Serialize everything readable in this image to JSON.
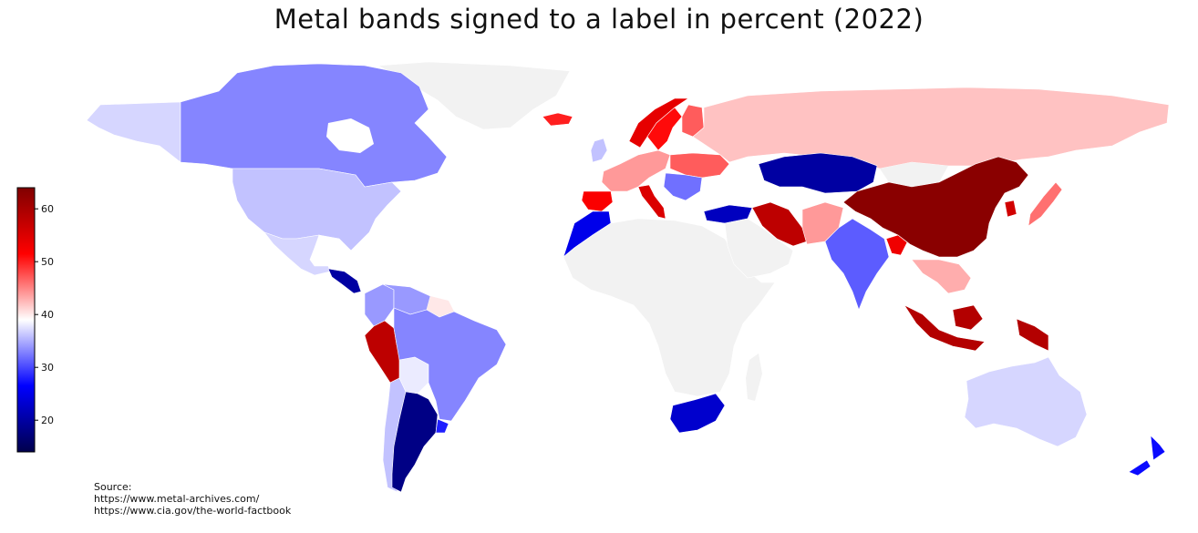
{
  "title": "Metal bands signed to a label in percent (2022)",
  "source": {
    "label": "Source:",
    "lines": [
      "https://www.metal-archives.com/",
      "https://www.cia.gov/the-world-factbook"
    ]
  },
  "colorbar": {
    "colormap": "seismic",
    "range": [
      14,
      64
    ],
    "ticks": [
      "20",
      "30",
      "40",
      "50",
      "60"
    ],
    "tick_values": [
      20,
      30,
      40,
      50,
      60
    ],
    "position": "left",
    "colors": [
      "#00004c",
      "#0000ff",
      "#ffffff",
      "#ff0000",
      "#800000"
    ]
  },
  "no_data_color": "#f2f2f2",
  "regions": [
    {
      "id": "greenland",
      "value": null
    },
    {
      "id": "alaska",
      "value": 37
    },
    {
      "id": "canada",
      "value": 33
    },
    {
      "id": "usa",
      "value": 36
    },
    {
      "id": "mexico",
      "value": 37
    },
    {
      "id": "central-america",
      "value": 20
    },
    {
      "id": "colombia",
      "value": 34
    },
    {
      "id": "venezuela",
      "value": 34
    },
    {
      "id": "peru",
      "value": 58
    },
    {
      "id": "brazil",
      "value": 33
    },
    {
      "id": "bolivia",
      "value": 38
    },
    {
      "id": "chile",
      "value": 36
    },
    {
      "id": "argentina",
      "value": 18
    },
    {
      "id": "uruguay",
      "value": 28
    },
    {
      "id": "iceland",
      "value": 50
    },
    {
      "id": "uk",
      "value": 36
    },
    {
      "id": "norway",
      "value": 54
    },
    {
      "id": "sweden",
      "value": 51
    },
    {
      "id": "finland",
      "value": 47
    },
    {
      "id": "russia",
      "value": 42
    },
    {
      "id": "western-europe",
      "value": 44
    },
    {
      "id": "iberia",
      "value": 52
    },
    {
      "id": "italy",
      "value": 55
    },
    {
      "id": "ukraine",
      "value": 47
    },
    {
      "id": "balkans",
      "value": 32
    },
    {
      "id": "turkey",
      "value": 22
    },
    {
      "id": "kazakhstan",
      "value": 20
    },
    {
      "id": "iran",
      "value": 58
    },
    {
      "id": "afghanistan",
      "value": 44
    },
    {
      "id": "india",
      "value": 31
    },
    {
      "id": "bangladesh",
      "value": 53
    },
    {
      "id": "china",
      "value": 63
    },
    {
      "id": "korea",
      "value": 56
    },
    {
      "id": "japan",
      "value": 46
    },
    {
      "id": "southeast-asia",
      "value": 43
    },
    {
      "id": "indonesia",
      "value": 59
    },
    {
      "id": "north-africa",
      "value": 25
    },
    {
      "id": "africa",
      "value": null
    },
    {
      "id": "south-africa",
      "value": 23
    },
    {
      "id": "middle-east",
      "value": null
    },
    {
      "id": "australia",
      "value": 37
    },
    {
      "id": "new-zealand",
      "value": 27
    }
  ]
}
